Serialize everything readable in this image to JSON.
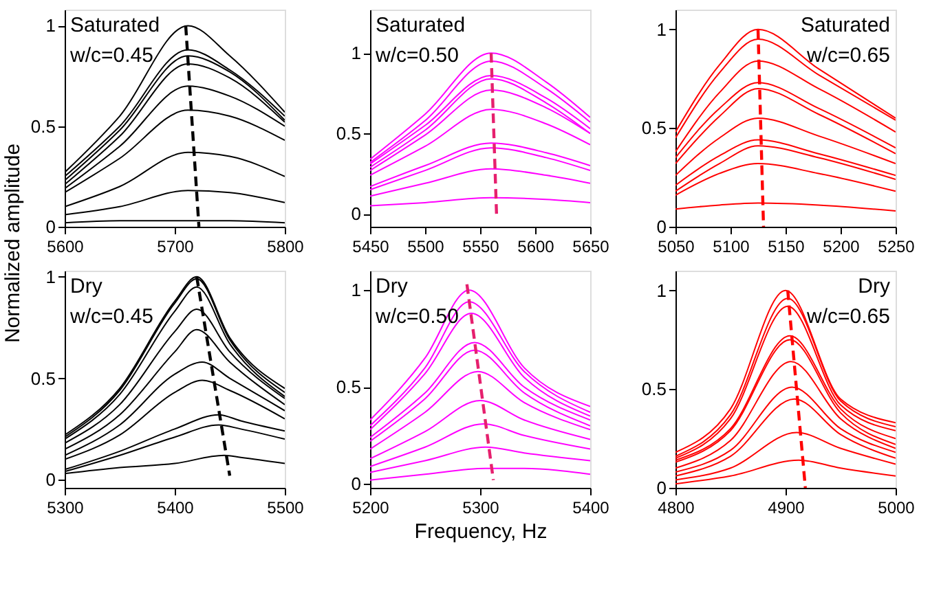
{
  "chart_data": [
    {
      "type": "line",
      "annotations": [
        "Saturated",
        "w/c=0.45"
      ],
      "xlim": [
        5600,
        5800
      ],
      "xticks": [
        5600,
        5700,
        5800
      ],
      "ylim": [
        0,
        1.08
      ],
      "yticks": [
        0,
        0.5,
        1
      ],
      "line_style": "solid",
      "series": [
        {
          "color": "#000000",
          "x": [
            5600,
            5650,
            5712,
            5750,
            5800
          ],
          "values": [
            0.27,
            0.55,
            1.0,
            0.85,
            0.57
          ]
        },
        {
          "color": "#000000",
          "x": [
            5600,
            5650,
            5712,
            5750,
            5800
          ],
          "values": [
            0.25,
            0.5,
            0.88,
            0.78,
            0.55
          ]
        },
        {
          "color": "#000000",
          "x": [
            5600,
            5650,
            5712,
            5750,
            5800
          ],
          "values": [
            0.23,
            0.48,
            0.85,
            0.77,
            0.53
          ]
        },
        {
          "color": "#000000",
          "x": [
            5600,
            5650,
            5712,
            5750,
            5800
          ],
          "values": [
            0.21,
            0.45,
            0.81,
            0.74,
            0.52
          ]
        },
        {
          "color": "#000000",
          "x": [
            5600,
            5650,
            5712,
            5750,
            5800
          ],
          "values": [
            0.19,
            0.4,
            0.7,
            0.65,
            0.5
          ]
        },
        {
          "color": "#000000",
          "x": [
            5600,
            5650,
            5712,
            5750,
            5800
          ],
          "values": [
            0.17,
            0.34,
            0.58,
            0.55,
            0.43
          ]
        },
        {
          "color": "#000000",
          "x": [
            5600,
            5650,
            5712,
            5750,
            5800
          ],
          "values": [
            0.1,
            0.2,
            0.37,
            0.35,
            0.25
          ]
        },
        {
          "color": "#000000",
          "x": [
            5600,
            5650,
            5712,
            5750,
            5800
          ],
          "values": [
            0.06,
            0.1,
            0.18,
            0.17,
            0.12
          ]
        },
        {
          "color": "#000000",
          "x": [
            5600,
            5650,
            5712,
            5750,
            5800
          ],
          "values": [
            0.02,
            0.03,
            0.03,
            0.03,
            0.02
          ]
        },
        {
          "color": "#000000",
          "line_style": "dashed",
          "x": [
            5710,
            5722
          ],
          "values": [
            1.0,
            0
          ]
        }
      ]
    },
    {
      "type": "line",
      "annotations": [
        "Saturated",
        "w/c=0.50"
      ],
      "xlim": [
        5450,
        5650
      ],
      "xticks": [
        5450,
        5500,
        5550,
        5600,
        5650
      ],
      "ylim": [
        -0.08,
        1.27
      ],
      "yticks": [
        0,
        0.5,
        1
      ],
      "line_style": "solid",
      "series": [
        {
          "color": "#ff00ff",
          "x": [
            5450,
            5500,
            5560,
            5610,
            5650
          ],
          "values": [
            0.34,
            0.62,
            1.0,
            0.82,
            0.6
          ]
        },
        {
          "color": "#ff00ff",
          "x": [
            5450,
            5500,
            5560,
            5610,
            5650
          ],
          "values": [
            0.32,
            0.58,
            0.95,
            0.78,
            0.57
          ]
        },
        {
          "color": "#ff00ff",
          "x": [
            5450,
            5500,
            5560,
            5610,
            5650
          ],
          "values": [
            0.31,
            0.55,
            0.86,
            0.72,
            0.53
          ]
        },
        {
          "color": "#ff00ff",
          "x": [
            5450,
            5500,
            5560,
            5610,
            5650
          ],
          "values": [
            0.29,
            0.52,
            0.84,
            0.69,
            0.5
          ]
        },
        {
          "color": "#ff00ff",
          "x": [
            5450,
            5500,
            5560,
            5610,
            5650
          ],
          "values": [
            0.27,
            0.49,
            0.77,
            0.66,
            0.5
          ]
        },
        {
          "color": "#ff00ff",
          "x": [
            5450,
            5500,
            5560,
            5610,
            5650
          ],
          "values": [
            0.24,
            0.42,
            0.65,
            0.56,
            0.43
          ]
        },
        {
          "color": "#ff00ff",
          "x": [
            5450,
            5500,
            5560,
            5610,
            5650
          ],
          "values": [
            0.17,
            0.3,
            0.44,
            0.38,
            0.3
          ]
        },
        {
          "color": "#ff00ff",
          "x": [
            5450,
            5500,
            5560,
            5610,
            5650
          ],
          "values": [
            0.15,
            0.27,
            0.41,
            0.35,
            0.27
          ]
        },
        {
          "color": "#ff00ff",
          "x": [
            5450,
            5500,
            5560,
            5610,
            5650
          ],
          "values": [
            0.11,
            0.19,
            0.28,
            0.24,
            0.19
          ]
        },
        {
          "color": "#ff00ff",
          "x": [
            5450,
            5500,
            5560,
            5610,
            5650
          ],
          "values": [
            0.05,
            0.07,
            0.1,
            0.09,
            0.07
          ]
        },
        {
          "color": "#e6206e",
          "line_style": "dashed",
          "x": [
            5560,
            5565
          ],
          "values": [
            1.0,
            -0.02
          ]
        }
      ]
    },
    {
      "type": "line",
      "annotations": [
        "Saturated",
        "w/c=0.65"
      ],
      "xlim": [
        5050,
        5250
      ],
      "xticks": [
        5050,
        5100,
        5150,
        5200,
        5250
      ],
      "ylim": [
        0,
        1.1
      ],
      "yticks": [
        0,
        0.5,
        1
      ],
      "line_style": "solid",
      "series": [
        {
          "color": "#ff0000",
          "x": [
            5050,
            5090,
            5125,
            5180,
            5250
          ],
          "values": [
            0.48,
            0.82,
            1.0,
            0.8,
            0.55
          ]
        },
        {
          "color": "#ff0000",
          "x": [
            5050,
            5090,
            5125,
            5180,
            5250
          ],
          "values": [
            0.45,
            0.78,
            0.95,
            0.77,
            0.54
          ]
        },
        {
          "color": "#ff0000",
          "x": [
            5050,
            5090,
            5125,
            5180,
            5250
          ],
          "values": [
            0.38,
            0.68,
            0.84,
            0.7,
            0.48
          ]
        },
        {
          "color": "#ff0000",
          "x": [
            5050,
            5090,
            5125,
            5180,
            5250
          ],
          "values": [
            0.35,
            0.6,
            0.73,
            0.6,
            0.4
          ]
        },
        {
          "color": "#ff0000",
          "x": [
            5050,
            5090,
            5125,
            5180,
            5250
          ],
          "values": [
            0.32,
            0.56,
            0.7,
            0.57,
            0.37
          ]
        },
        {
          "color": "#ff0000",
          "x": [
            5050,
            5090,
            5125,
            5180,
            5250
          ],
          "values": [
            0.26,
            0.45,
            0.55,
            0.46,
            0.32
          ]
        },
        {
          "color": "#ff0000",
          "x": [
            5050,
            5090,
            5125,
            5180,
            5250
          ],
          "values": [
            0.21,
            0.36,
            0.44,
            0.37,
            0.26
          ]
        },
        {
          "color": "#ff0000",
          "x": [
            5050,
            5090,
            5125,
            5180,
            5250
          ],
          "values": [
            0.18,
            0.32,
            0.41,
            0.35,
            0.24
          ]
        },
        {
          "color": "#ff0000",
          "x": [
            5050,
            5090,
            5125,
            5180,
            5250
          ],
          "values": [
            0.16,
            0.27,
            0.32,
            0.27,
            0.18
          ]
        },
        {
          "color": "#ff0000",
          "x": [
            5050,
            5090,
            5125,
            5180,
            5250
          ],
          "values": [
            0.09,
            0.11,
            0.12,
            0.11,
            0.08
          ]
        },
        {
          "color": "#ff0000",
          "line_style": "dashed",
          "x": [
            5125,
            5130
          ],
          "values": [
            1.0,
            0
          ]
        }
      ]
    },
    {
      "type": "line",
      "annotations": [
        "Dry",
        "w/c=0.45"
      ],
      "ylabel": "Normalized amplitude",
      "xlim": [
        5300,
        5500
      ],
      "xticks": [
        5300,
        5400,
        5500
      ],
      "ylim": [
        -0.04,
        1.03
      ],
      "yticks": [
        0,
        0.5,
        1
      ],
      "line_style": "solid",
      "series": [
        {
          "color": "#000000",
          "x": [
            5300,
            5350,
            5400,
            5420,
            5450,
            5500
          ],
          "values": [
            0.22,
            0.45,
            0.88,
            1.0,
            0.7,
            0.45
          ]
        },
        {
          "color": "#000000",
          "x": [
            5300,
            5350,
            5400,
            5420,
            5450,
            5500
          ],
          "values": [
            0.21,
            0.44,
            0.87,
            0.99,
            0.69,
            0.43
          ]
        },
        {
          "color": "#000000",
          "x": [
            5300,
            5350,
            5400,
            5420,
            5450,
            5500
          ],
          "values": [
            0.2,
            0.42,
            0.83,
            0.95,
            0.67,
            0.41
          ]
        },
        {
          "color": "#000000",
          "x": [
            5300,
            5350,
            5400,
            5420,
            5450,
            5500
          ],
          "values": [
            0.18,
            0.37,
            0.73,
            0.84,
            0.63,
            0.4
          ]
        },
        {
          "color": "#000000",
          "x": [
            5300,
            5350,
            5400,
            5420,
            5450,
            5500
          ],
          "values": [
            0.15,
            0.32,
            0.63,
            0.74,
            0.58,
            0.37
          ]
        },
        {
          "color": "#000000",
          "x": [
            5300,
            5350,
            5400,
            5425,
            5450,
            5500
          ],
          "values": [
            0.12,
            0.27,
            0.52,
            0.58,
            0.5,
            0.34
          ]
        },
        {
          "color": "#000000",
          "x": [
            5300,
            5350,
            5400,
            5425,
            5450,
            5500
          ],
          "values": [
            0.1,
            0.22,
            0.43,
            0.49,
            0.44,
            0.3
          ]
        },
        {
          "color": "#000000",
          "x": [
            5300,
            5350,
            5400,
            5440,
            5460,
            5500
          ],
          "values": [
            0.05,
            0.14,
            0.25,
            0.32,
            0.29,
            0.24
          ]
        },
        {
          "color": "#000000",
          "x": [
            5300,
            5350,
            5400,
            5440,
            5460,
            5500
          ],
          "values": [
            0.04,
            0.12,
            0.21,
            0.27,
            0.25,
            0.2
          ]
        },
        {
          "color": "#000000",
          "x": [
            5300,
            5350,
            5400,
            5445,
            5460,
            5500
          ],
          "values": [
            0.03,
            0.06,
            0.08,
            0.12,
            0.11,
            0.08
          ]
        },
        {
          "color": "#000000",
          "line_style": "dashed",
          "x": [
            5420,
            5450
          ],
          "values": [
            1.0,
            0.02
          ]
        }
      ]
    },
    {
      "type": "line",
      "annotations": [
        "Dry",
        "w/c=0.50"
      ],
      "xlabel": "Frequency, Hz",
      "xlim": [
        5200,
        5400
      ],
      "xticks": [
        5200,
        5300,
        5400
      ],
      "ylim": [
        -0.02,
        1.1
      ],
      "yticks": [
        0,
        0.5,
        1
      ],
      "line_style": "solid",
      "series": [
        {
          "color": "#ff00ff",
          "x": [
            5200,
            5250,
            5290,
            5340,
            5400
          ],
          "values": [
            0.33,
            0.65,
            1.0,
            0.6,
            0.4
          ]
        },
        {
          "color": "#ff00ff",
          "x": [
            5200,
            5250,
            5290,
            5340,
            5400
          ],
          "values": [
            0.3,
            0.6,
            0.94,
            0.58,
            0.37
          ]
        },
        {
          "color": "#ff00ff",
          "x": [
            5200,
            5250,
            5292,
            5340,
            5400
          ],
          "values": [
            0.28,
            0.57,
            0.88,
            0.55,
            0.35
          ]
        },
        {
          "color": "#ff00ff",
          "x": [
            5200,
            5250,
            5295,
            5340,
            5400
          ],
          "values": [
            0.24,
            0.47,
            0.73,
            0.5,
            0.33
          ]
        },
        {
          "color": "#ff00ff",
          "x": [
            5200,
            5250,
            5295,
            5340,
            5400
          ],
          "values": [
            0.22,
            0.44,
            0.69,
            0.47,
            0.3
          ]
        },
        {
          "color": "#ff00ff",
          "x": [
            5200,
            5250,
            5298,
            5340,
            5400
          ],
          "values": [
            0.18,
            0.37,
            0.58,
            0.42,
            0.28
          ]
        },
        {
          "color": "#ff00ff",
          "x": [
            5200,
            5250,
            5300,
            5340,
            5400
          ],
          "values": [
            0.13,
            0.27,
            0.43,
            0.33,
            0.23
          ]
        },
        {
          "color": "#ff00ff",
          "x": [
            5200,
            5250,
            5303,
            5340,
            5400
          ],
          "values": [
            0.09,
            0.19,
            0.31,
            0.25,
            0.18
          ]
        },
        {
          "color": "#ff00ff",
          "x": [
            5200,
            5250,
            5305,
            5340,
            5400
          ],
          "values": [
            0.06,
            0.12,
            0.19,
            0.16,
            0.12
          ]
        },
        {
          "color": "#ff00ff",
          "x": [
            5200,
            5250,
            5305,
            5340,
            5400
          ],
          "values": [
            0.02,
            0.05,
            0.08,
            0.08,
            0.05
          ]
        },
        {
          "color": "#e6206e",
          "line_style": "dashed",
          "x": [
            5288,
            5312
          ],
          "values": [
            1.03,
            0.02
          ]
        }
      ]
    },
    {
      "type": "line",
      "annotations": [
        "Dry",
        "w/c=0.65"
      ],
      "xlim": [
        4800,
        5000
      ],
      "xticks": [
        4800,
        4900,
        5000
      ],
      "ylim": [
        0,
        1.1
      ],
      "yticks": [
        0,
        0.5,
        1
      ],
      "line_style": "solid",
      "series": [
        {
          "color": "#ff0000",
          "x": [
            4800,
            4850,
            4900,
            4950,
            5000
          ],
          "values": [
            0.18,
            0.4,
            1.0,
            0.45,
            0.33
          ]
        },
        {
          "color": "#ff0000",
          "x": [
            4800,
            4850,
            4902,
            4950,
            5000
          ],
          "values": [
            0.16,
            0.37,
            0.96,
            0.44,
            0.31
          ]
        },
        {
          "color": "#ff0000",
          "x": [
            4800,
            4850,
            4902,
            4950,
            5000
          ],
          "values": [
            0.15,
            0.35,
            0.92,
            0.42,
            0.29
          ]
        },
        {
          "color": "#ff0000",
          "x": [
            4800,
            4850,
            4904,
            4950,
            5000
          ],
          "values": [
            0.14,
            0.3,
            0.77,
            0.4,
            0.25
          ]
        },
        {
          "color": "#ff0000",
          "x": [
            4800,
            4850,
            4904,
            4950,
            5000
          ],
          "values": [
            0.13,
            0.29,
            0.75,
            0.38,
            0.22
          ]
        },
        {
          "color": "#ff0000",
          "x": [
            4800,
            4850,
            4905,
            4950,
            5000
          ],
          "values": [
            0.1,
            0.24,
            0.64,
            0.35,
            0.2
          ]
        },
        {
          "color": "#ff0000",
          "x": [
            4800,
            4850,
            4906,
            4950,
            5000
          ],
          "values": [
            0.08,
            0.19,
            0.51,
            0.3,
            0.18
          ]
        },
        {
          "color": "#ff0000",
          "x": [
            4800,
            4850,
            4908,
            4950,
            5000
          ],
          "values": [
            0.06,
            0.16,
            0.45,
            0.27,
            0.15
          ]
        },
        {
          "color": "#ff0000",
          "x": [
            4800,
            4850,
            4910,
            4950,
            5000
          ],
          "values": [
            0.04,
            0.1,
            0.28,
            0.2,
            0.12
          ]
        },
        {
          "color": "#ff0000",
          "x": [
            4800,
            4850,
            4912,
            4950,
            5000
          ],
          "values": [
            0.02,
            0.06,
            0.14,
            0.1,
            0.06
          ]
        },
        {
          "color": "#ff0000",
          "line_style": "dashed",
          "x": [
            4902,
            4918
          ],
          "values": [
            1.0,
            0
          ]
        }
      ]
    }
  ]
}
